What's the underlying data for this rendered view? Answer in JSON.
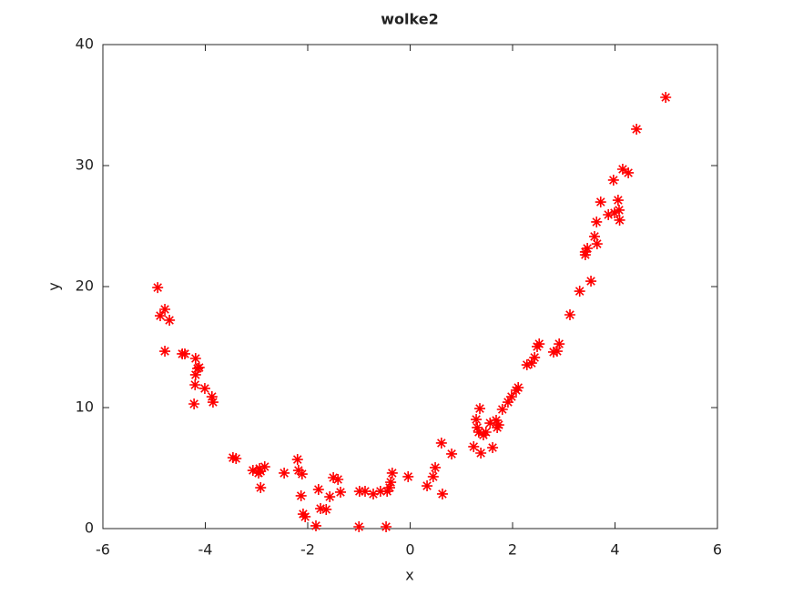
{
  "chart_data": {
    "type": "scatter",
    "title": "wolke2",
    "x_label": "x",
    "y_label": "y",
    "xlim": [
      -6,
      6
    ],
    "ylim": [
      0,
      40
    ],
    "xticks": [
      -6,
      -4,
      -2,
      0,
      2,
      4,
      6
    ],
    "yticks": [
      0,
      10,
      20,
      30,
      40
    ],
    "color": "#ff0000",
    "marker": "asterisk",
    "grid": false,
    "x": [
      -4.93,
      -4.88,
      -4.79,
      -4.7,
      -4.79,
      -4.45,
      -4.4,
      -4.19,
      -4.15,
      -4.19,
      -4.12,
      -4.2,
      -4.22,
      -4.01,
      -3.87,
      -3.85,
      -3.46,
      -3.4,
      -3.07,
      -2.94,
      -2.84,
      -2.96,
      -2.92,
      -2.92,
      -2.46,
      -2.2,
      -2.18,
      -2.11,
      -2.13,
      -2.09,
      -2.05,
      -1.84,
      -1.79,
      -1.75,
      -1.64,
      -1.57,
      -1.5,
      -1.41,
      -1.36,
      -1.0,
      -0.99,
      -0.88,
      -0.72,
      -0.58,
      -0.47,
      -0.45,
      -0.4,
      -0.38,
      -0.35,
      -0.04,
      0.33,
      0.45,
      0.49,
      0.61,
      0.63,
      0.81,
      1.24,
      1.29,
      1.31,
      1.36,
      1.34,
      1.38,
      1.43,
      1.48,
      1.56,
      1.61,
      1.68,
      1.7,
      1.73,
      1.8,
      1.91,
      1.98,
      2.07,
      2.11,
      2.28,
      2.37,
      2.43,
      2.48,
      2.52,
      2.8,
      2.87,
      2.91,
      3.12,
      3.31,
      3.42,
      3.46,
      3.42,
      3.53,
      3.6,
      3.64,
      3.65,
      3.72,
      3.87,
      3.97,
      3.99,
      4.06,
      4.08,
      4.09,
      4.15,
      4.26,
      4.42,
      4.99
    ],
    "values": [
      19.92,
      17.59,
      18.12,
      17.22,
      14.66,
      14.44,
      14.44,
      14.06,
      13.23,
      12.71,
      13.31,
      11.88,
      10.3,
      11.58,
      10.9,
      10.45,
      5.86,
      5.79,
      4.81,
      4.96,
      5.11,
      4.59,
      4.74,
      3.38,
      4.59,
      5.71,
      4.81,
      4.51,
      2.71,
      1.2,
      0.98,
      0.23,
      3.23,
      1.65,
      1.58,
      2.63,
      4.21,
      4.06,
      3.01,
      0.15,
      3.08,
      3.08,
      2.86,
      3.08,
      0.15,
      3.08,
      3.38,
      3.83,
      4.59,
      4.29,
      3.53,
      4.29,
      5.04,
      7.07,
      2.86,
      6.17,
      6.77,
      9.02,
      8.35,
      9.92,
      7.97,
      6.24,
      7.74,
      7.97,
      8.72,
      6.69,
      8.95,
      8.35,
      8.57,
      9.85,
      10.45,
      10.9,
      11.43,
      11.65,
      13.53,
      13.68,
      14.14,
      15.04,
      15.26,
      14.59,
      14.66,
      15.26,
      17.67,
      19.62,
      22.86,
      23.16,
      22.63,
      20.45,
      24.14,
      25.34,
      23.53,
      26.99,
      25.94,
      28.8,
      26.09,
      27.14,
      26.32,
      25.49,
      29.7,
      29.4,
      33.01,
      35.64
    ]
  }
}
